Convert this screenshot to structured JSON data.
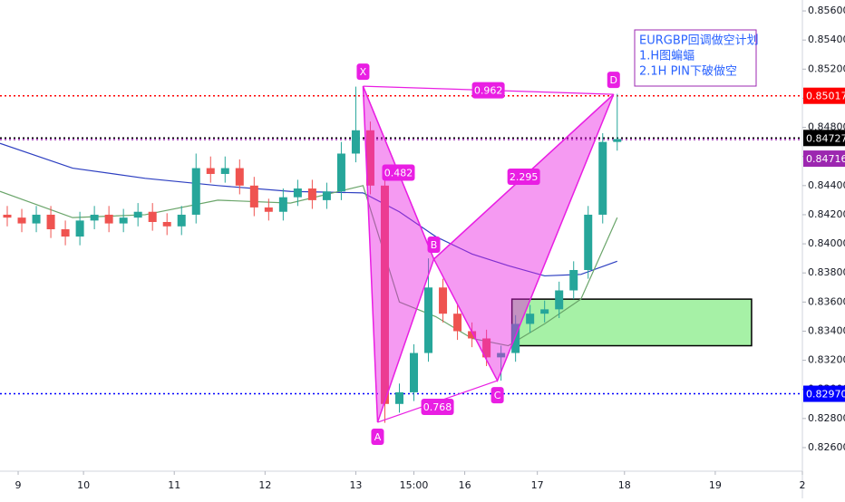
{
  "chart_data": {
    "type": "candlestick",
    "x": [
      2,
      6,
      10,
      14,
      18,
      22,
      26,
      30,
      34,
      38,
      42,
      46,
      50,
      54,
      58,
      62,
      66,
      70,
      74,
      78,
      82,
      86,
      90,
      94,
      98,
      102,
      106,
      110,
      114,
      118,
      122,
      126,
      130,
      134,
      138,
      142,
      146,
      150,
      154,
      158,
      162,
      166,
      170
    ],
    "open": [
      0.842,
      0.8418,
      0.8414,
      0.842,
      0.841,
      0.8405,
      0.8416,
      0.842,
      0.8414,
      0.8418,
      0.8422,
      0.8415,
      0.8412,
      0.842,
      0.8452,
      0.8448,
      0.8452,
      0.844,
      0.8425,
      0.8422,
      0.8432,
      0.8438,
      0.843,
      0.8436,
      0.8462,
      0.8478,
      0.844,
      0.829,
      0.8298,
      0.8325,
      0.837,
      0.8352,
      0.834,
      0.8335,
      0.8322,
      0.8325,
      0.8345,
      0.8352,
      0.8355,
      0.8368,
      0.8382,
      0.842,
      0.847
    ],
    "high": [
      0.8426,
      0.8424,
      0.8426,
      0.8426,
      0.8416,
      0.8422,
      0.8426,
      0.8426,
      0.8424,
      0.8428,
      0.8428,
      0.8421,
      0.8426,
      0.8462,
      0.846,
      0.846,
      0.8458,
      0.8446,
      0.8431,
      0.8438,
      0.8444,
      0.8444,
      0.8442,
      0.847,
      0.8508,
      0.8484,
      0.8446,
      0.8304,
      0.8331,
      0.839,
      0.8376,
      0.8358,
      0.8346,
      0.8341,
      0.833,
      0.8351,
      0.8358,
      0.8361,
      0.8374,
      0.8388,
      0.8426,
      0.8476,
      0.8503
    ],
    "low": [
      0.8412,
      0.8408,
      0.8408,
      0.8404,
      0.8399,
      0.8399,
      0.841,
      0.8408,
      0.8408,
      0.8412,
      0.8409,
      0.8406,
      0.8406,
      0.8414,
      0.8442,
      0.8442,
      0.8434,
      0.8419,
      0.8416,
      0.8416,
      0.8426,
      0.8424,
      0.8424,
      0.843,
      0.8456,
      0.8434,
      0.8277,
      0.8284,
      0.8292,
      0.8319,
      0.8346,
      0.8334,
      0.8329,
      0.8316,
      0.8306,
      0.8319,
      0.8339,
      0.8346,
      0.8349,
      0.8362,
      0.8376,
      0.8414,
      0.8464
    ],
    "close": [
      0.8418,
      0.8414,
      0.842,
      0.841,
      0.8405,
      0.8416,
      0.842,
      0.8414,
      0.8418,
      0.8422,
      0.8415,
      0.8412,
      0.842,
      0.8452,
      0.8448,
      0.8452,
      0.844,
      0.8425,
      0.8422,
      0.8432,
      0.8438,
      0.843,
      0.8436,
      0.8462,
      0.8478,
      0.844,
      0.829,
      0.8298,
      0.8325,
      0.837,
      0.8352,
      0.834,
      0.8335,
      0.8322,
      0.8325,
      0.8345,
      0.8352,
      0.8355,
      0.8368,
      0.8382,
      0.842,
      0.847,
      0.8472
    ],
    "up_color": "#26a69a",
    "down_color": "#ef5350",
    "ma_x": [
      0,
      20,
      40,
      60,
      80,
      100,
      110,
      120,
      130,
      140,
      150,
      160,
      170
    ],
    "moving_averages": [
      {
        "color": "#2d3fc1",
        "values": [
          0.8469,
          0.8452,
          0.8445,
          0.844,
          0.8436,
          0.8435,
          0.8422,
          0.8405,
          0.8393,
          0.8385,
          0.8378,
          0.8379,
          0.8388
        ]
      },
      {
        "color": "#6aa56a",
        "values": [
          0.8436,
          0.8418,
          0.842,
          0.843,
          0.8428,
          0.844,
          0.836,
          0.835,
          0.8335,
          0.833,
          0.8345,
          0.8362,
          0.8418
        ]
      }
    ],
    "pattern": {
      "labels": [
        "X",
        "A",
        "B",
        "C",
        "D"
      ],
      "x": [
        100,
        104,
        119.5,
        137,
        169
      ],
      "y": [
        0.85083,
        0.82774,
        0.83895,
        0.8306,
        0.85027
      ],
      "color": "#e91ee3"
    },
    "ratio_labels": [
      "0.482",
      "0.768",
      "2.295",
      "0.962"
    ],
    "zone": {
      "x": [
        141,
        207
      ],
      "y": [
        0.833,
        0.8362
      ],
      "color": "#90ee90"
    },
    "levels": [
      {
        "price": 0.85017,
        "color": "#ff0000"
      },
      {
        "price": 0.84727,
        "color": "#000000"
      },
      {
        "price": 0.84716,
        "color": "#9c27b0"
      },
      {
        "price": {
          "value": 0.8297,
          "label": "0.82970"
        },
        "color": "#0000ff"
      }
    ],
    "annotation": [
      "EURGBP回调做空计划",
      "1.H图蝙蝠",
      "2.1H PIN下破做空"
    ],
    "xlim": [
      0,
      221
    ],
    "ylim": [
      0.82438,
      0.85675
    ],
    "xticks": [
      {
        "value": 5,
        "label": "9"
      },
      {
        "value": 23,
        "label": "10"
      },
      {
        "value": 48,
        "label": "11"
      },
      {
        "value": 73,
        "label": "12"
      },
      {
        "value": 98,
        "label": "13"
      },
      {
        "value": 114,
        "label": "15:00"
      },
      {
        "value": 128,
        "label": "16"
      },
      {
        "value": 148,
        "label": "17"
      },
      {
        "value": 172,
        "label": "18"
      },
      {
        "value": 197,
        "label": "19"
      },
      {
        "value": 221,
        "label": "2"
      }
    ],
    "yticks": [
      {
        "value": 0.826,
        "label": "0.82600"
      },
      {
        "value": 0.828,
        "label": "0.82800"
      },
      {
        "value": 0.83,
        "label": "0.83000"
      },
      {
        "value": 0.832,
        "label": "0.83200"
      },
      {
        "value": 0.834,
        "label": "0.83400"
      },
      {
        "value": 0.836,
        "label": "0.83600"
      },
      {
        "value": 0.838,
        "label": "0.83800"
      },
      {
        "value": 0.84,
        "label": "0.84000"
      },
      {
        "value": 0.842,
        "label": "0.84200"
      },
      {
        "value": 0.844,
        "label": "0.84400"
      },
      {
        "value": 0.846,
        "label": "0.84600"
      },
      {
        "value": 0.848,
        "label": "0.84800"
      },
      {
        "value": 0.85,
        "label": "0.85000"
      },
      {
        "value": 0.852,
        "label": "0.85200"
      },
      {
        "value": 0.854,
        "label": "0.85400"
      },
      {
        "value": 0.856,
        "label": "0.85600"
      }
    ]
  }
}
